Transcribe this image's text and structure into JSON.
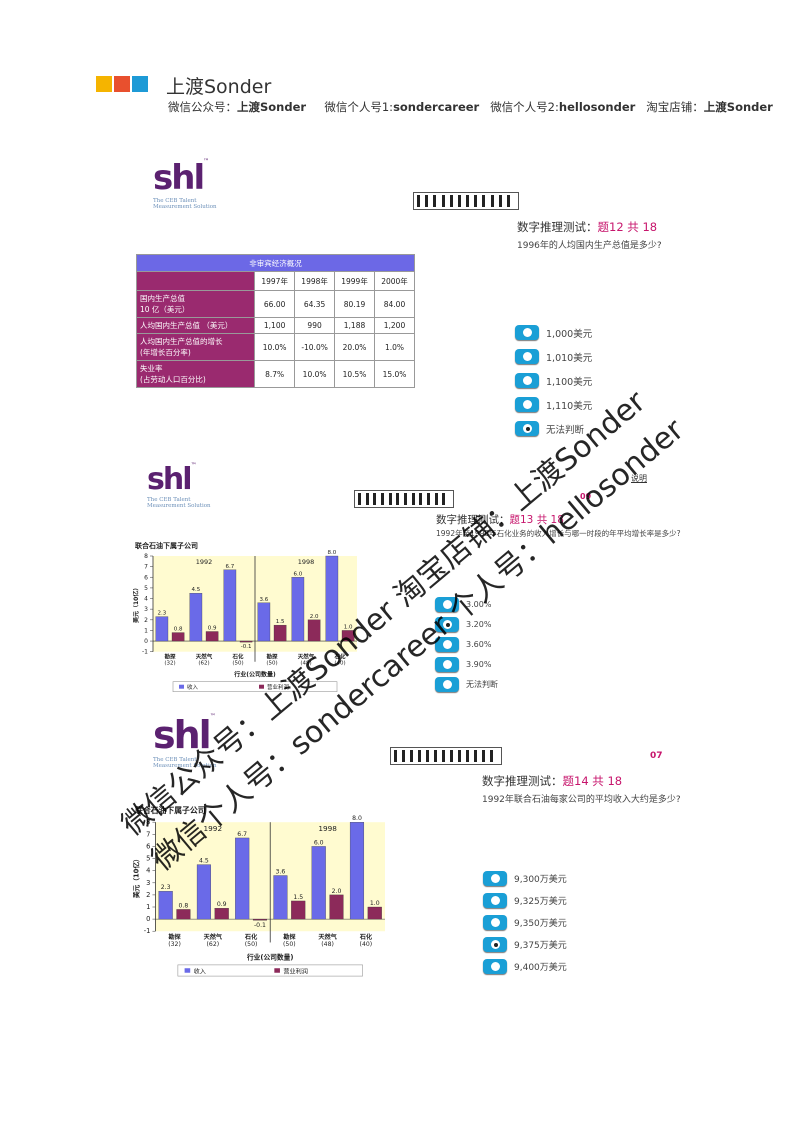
{
  "header": {
    "brand_colors": [
      "#f5b400",
      "#e8502e",
      "#1e9ad6"
    ],
    "brand": "上渡Sonder",
    "sub_label_1": "微信公众号：",
    "sub_value_1": "上渡Sonder",
    "sub_label_2": "微信个人号1:",
    "sub_value_2": "sondercareer",
    "sub_label_3": "微信个人号2:",
    "sub_value_3": "hellosonder",
    "sub_label_4": "淘宝店铺：",
    "sub_value_4": "上渡Sonder"
  },
  "logo": {
    "text": "shl",
    "tm": "™",
    "line1": "The CEB Talent",
    "line2": "Measurement Solution"
  },
  "q12": {
    "title_prefix": "数字推理测试：",
    "title_num": "题12 共 18",
    "question": "1996年的人均国内生产总值是多少?",
    "table": {
      "title": "非审宾经济概况",
      "years": [
        "1997年",
        "1998年",
        "1999年",
        "2000年"
      ],
      "rows": [
        {
          "label1": "国内生产总值",
          "label2": "10 亿（美元）",
          "values": [
            "66.00",
            "64.35",
            "80.19",
            "84.00"
          ]
        },
        {
          "label1": "人均国内生产总值 （美元）",
          "label2": "",
          "values": [
            "1,100",
            "990",
            "1,188",
            "1,200"
          ]
        },
        {
          "label1": "人均国内生产总值的增长",
          "label2": "(年增长百分率)",
          "values": [
            "10.0%",
            "-10.0%",
            "20.0%",
            "1.0%"
          ]
        },
        {
          "label1": "失业率",
          "label2": "(占劳动人口百分比)",
          "values": [
            "8.7%",
            "10.0%",
            "10.5%",
            "15.0%"
          ]
        }
      ]
    },
    "options": [
      "1,000美元",
      "1,010美元",
      "1,100美元",
      "1,110美元",
      "无法判断"
    ],
    "selected": 4
  },
  "q13": {
    "corner_label": "说明",
    "timer": "09",
    "title_prefix": "数字推理测试：",
    "title_num": "题13 共 18",
    "question": "1992年至1998年石化业务的收入增长与哪一时段的年平均增长率是多少?",
    "options": [
      "3.00%",
      "3.20%",
      "3.60%",
      "3.90%",
      "无法判断"
    ],
    "selected": 1
  },
  "q14": {
    "timer": "07",
    "title_prefix": "数字推理测试：",
    "title_num": "题14 共 18",
    "question": "1992年联合石油每家公司的平均收入大约是多少?",
    "options": [
      "9,300万美元",
      "9,325万美元",
      "9,350万美元",
      "9,375万美元",
      "9,400万美元"
    ],
    "selected": 3
  },
  "chart_data": [
    {
      "type": "bar",
      "title": "联合石油下属子公司",
      "ylabel": "美元（10亿）",
      "xlabel": "行业(公司数量)",
      "ylim": [
        -1,
        8
      ],
      "panels": [
        "1992",
        "1998"
      ],
      "categories": [
        "勘探 (32)",
        "天然气 (62)",
        "石化 (50)",
        "勘探 (50)",
        "天然气 (48)",
        "石化 (40)"
      ],
      "series": [
        {
          "name": "收入",
          "values": [
            2.3,
            4.5,
            6.7,
            3.6,
            6.0,
            8.0
          ]
        },
        {
          "name": "营业利润",
          "values": [
            0.8,
            0.9,
            -0.1,
            1.5,
            2.0,
            1.0
          ]
        }
      ],
      "colors": [
        "#6a6ae8",
        "#8c2a5a"
      ]
    },
    {
      "type": "bar",
      "title": "联合石油下属子公司",
      "ylabel": "美元（10亿）",
      "xlabel": "行业(公司数量)",
      "ylim": [
        -1,
        8
      ],
      "panels": [
        "1992",
        "1998"
      ],
      "categories": [
        "勘探 (32)",
        "天然气 (62)",
        "石化 (50)",
        "勘探 (50)",
        "天然气 (48)",
        "石化 (40)"
      ],
      "series": [
        {
          "name": "收入",
          "values": [
            2.3,
            4.5,
            6.7,
            3.6,
            6.0,
            8.0
          ]
        },
        {
          "name": "营业利润",
          "values": [
            0.8,
            0.9,
            -0.1,
            1.5,
            2.0,
            1.0
          ]
        }
      ],
      "colors": [
        "#6a6ae8",
        "#8c2a5a"
      ]
    }
  ],
  "watermark": {
    "line1": "微信公众号：上渡Sonder 淘宝店铺：上渡Sonder",
    "line2": "微信个人号：sondercareer 个人号：hellosonder"
  }
}
